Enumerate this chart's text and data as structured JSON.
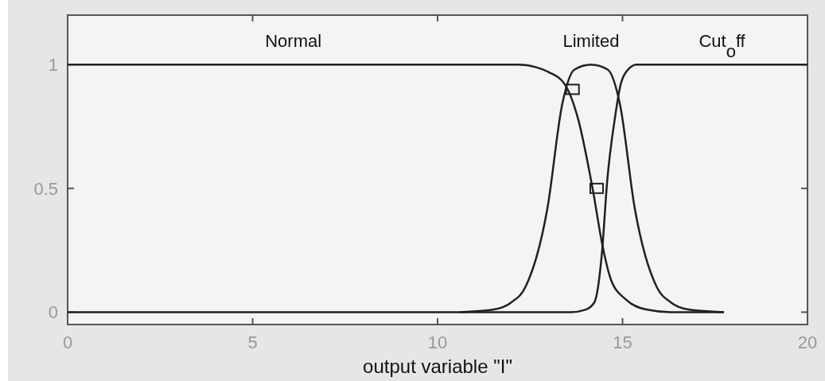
{
  "chart_data": {
    "type": "line",
    "xlabel": "output variable \"I\"",
    "xlim": [
      0,
      20
    ],
    "xticks": [
      0,
      5,
      10,
      15,
      20
    ],
    "ylim": [
      -0.05,
      1.2
    ],
    "yticks": [
      0,
      0.5,
      1
    ],
    "grid": false,
    "line_style": "solid",
    "series": [
      {
        "name": "Normal",
        "color": "#202020",
        "x": [
          0,
          12.2,
          12.65,
          13.0,
          13.44,
          13.8,
          14.19,
          14.47,
          14.69,
          15.1,
          15.66,
          16.3,
          17.74
        ],
        "values": [
          1,
          1,
          0.99,
          0.97,
          0.92,
          0.78,
          0.5,
          0.26,
          0.13,
          0.05,
          0.01,
          0,
          0
        ]
      },
      {
        "name": "Limited",
        "color": "#202020",
        "x": [
          10.6,
          11.5,
          12.0,
          12.37,
          12.97,
          13.37,
          13.7,
          14.15,
          14.6,
          14.93,
          15.33,
          15.93,
          16.3,
          16.8,
          17.74
        ],
        "values": [
          0,
          0.01,
          0.04,
          0.1,
          0.42,
          0.84,
          0.98,
          1,
          0.98,
          0.84,
          0.42,
          0.1,
          0.04,
          0.01,
          0
        ]
      },
      {
        "name": "Cut$_{o}$ff",
        "color": "#202020",
        "x": [
          0,
          13.6,
          14.0,
          14.24,
          14.45,
          14.58,
          14.8,
          14.95,
          15.15,
          15.38,
          20
        ],
        "values": [
          0,
          0,
          0.01,
          0.04,
          0.25,
          0.52,
          0.79,
          0.92,
          0.98,
          1,
          1
        ]
      },
      {
        "type": "scatter",
        "color": "#202020",
        "x": [
          13.65,
          14.3
        ],
        "values": [
          0.9,
          0.5
        ]
      }
    ]
  }
}
